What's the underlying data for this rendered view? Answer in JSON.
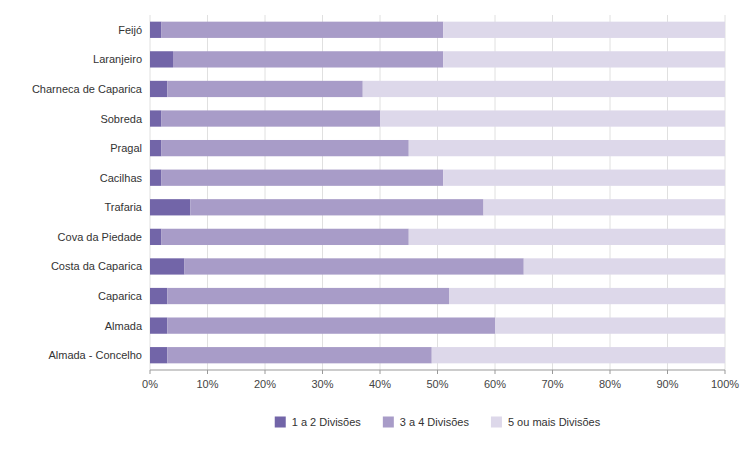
{
  "chart_data": {
    "type": "bar",
    "orientation": "horizontal",
    "stacked": true,
    "categories": [
      "Feijó",
      "Laranjeiro",
      "Charneca de Caparica",
      "Sobreda",
      "Pragal",
      "Cacilhas",
      "Trafaria",
      "Cova da Piedade",
      "Costa da Caparica",
      "Caparica",
      "Almada",
      "Almada - Concelho"
    ],
    "series": [
      {
        "name": "1 a 2 Divisões",
        "color": "#7265a8",
        "values": [
          2,
          4,
          3,
          2,
          2,
          2,
          7,
          2,
          6,
          3,
          3,
          3
        ]
      },
      {
        "name": "3 a 4 Divisões",
        "color": "#a89cc8",
        "values": [
          49,
          47,
          34,
          38,
          43,
          49,
          51,
          43,
          59,
          49,
          57,
          46
        ]
      },
      {
        "name": "5 ou mais Divisões",
        "color": "#ddd8ea",
        "values": [
          49,
          49,
          63,
          60,
          55,
          49,
          42,
          55,
          35,
          48,
          40,
          51
        ]
      }
    ],
    "xlim": [
      0,
      100
    ],
    "xticks": [
      {
        "value": 0,
        "label": "0%"
      },
      {
        "value": 10,
        "label": "10%"
      },
      {
        "value": 20,
        "label": "20%"
      },
      {
        "value": 30,
        "label": "30%"
      },
      {
        "value": 40,
        "label": "40%"
      },
      {
        "value": 50,
        "label": "50%"
      },
      {
        "value": 60,
        "label": "60%"
      },
      {
        "value": 70,
        "label": "70%"
      },
      {
        "value": 80,
        "label": "80%"
      },
      {
        "value": 90,
        "label": "90%"
      },
      {
        "value": 100,
        "label": "100%"
      }
    ],
    "grid": true,
    "legend": "bottom"
  }
}
